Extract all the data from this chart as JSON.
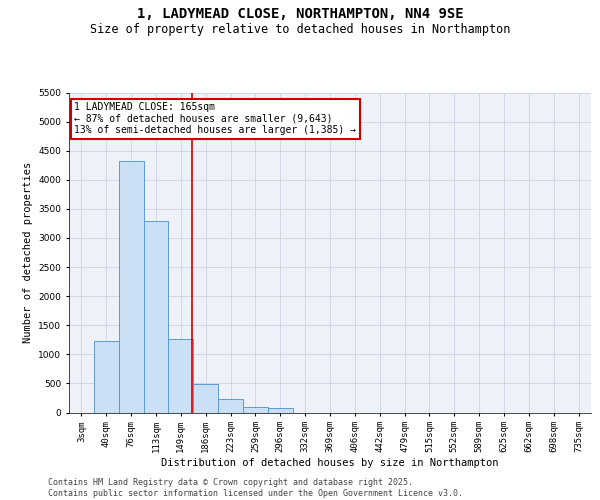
{
  "title": "1, LADYMEAD CLOSE, NORTHAMPTON, NN4 9SE",
  "subtitle": "Size of property relative to detached houses in Northampton",
  "xlabel": "Distribution of detached houses by size in Northampton",
  "ylabel": "Number of detached properties",
  "categories": [
    "3sqm",
    "40sqm",
    "76sqm",
    "113sqm",
    "149sqm",
    "186sqm",
    "223sqm",
    "259sqm",
    "296sqm",
    "332sqm",
    "369sqm",
    "406sqm",
    "442sqm",
    "479sqm",
    "515sqm",
    "552sqm",
    "589sqm",
    "625sqm",
    "662sqm",
    "698sqm",
    "735sqm"
  ],
  "values": [
    0,
    1230,
    4320,
    3300,
    1270,
    490,
    230,
    100,
    70,
    0,
    0,
    0,
    0,
    0,
    0,
    0,
    0,
    0,
    0,
    0,
    0
  ],
  "bar_color": "#cce0f5",
  "bar_edge_color": "#5b9bd5",
  "grid_color": "#d0d8e8",
  "background_color": "#eef2f8",
  "vline_color": "#cc0000",
  "annotation_text": "1 LADYMEAD CLOSE: 165sqm\n← 87% of detached houses are smaller (9,643)\n13% of semi-detached houses are larger (1,385) →",
  "annotation_box_color": "#cc0000",
  "footer_line1": "Contains HM Land Registry data © Crown copyright and database right 2025.",
  "footer_line2": "Contains public sector information licensed under the Open Government Licence v3.0.",
  "title_fontsize": 10,
  "subtitle_fontsize": 8.5,
  "axis_label_fontsize": 7.5,
  "tick_fontsize": 6.5,
  "annotation_fontsize": 7,
  "footer_fontsize": 6,
  "ylim": [
    0,
    5500
  ],
  "yticks": [
    0,
    500,
    1000,
    1500,
    2000,
    2500,
    3000,
    3500,
    4000,
    4500,
    5000,
    5500
  ]
}
